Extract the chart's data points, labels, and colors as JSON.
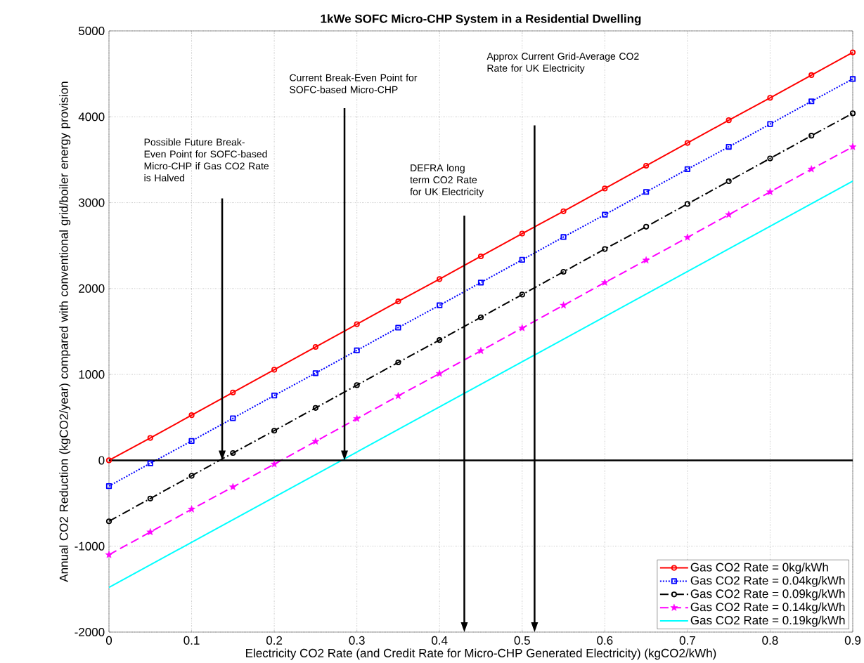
{
  "chart_data": {
    "type": "line",
    "title": "1kWe SOFC Micro-CHP System in a Residential Dwelling",
    "xlabel": "Electricity CO2 Rate (and Credit Rate for Micro-CHP Generated Electricity) (kgCO2/kWh)",
    "ylabel": "Annual CO2 Reduction (kgCO2/year) compared with conventional grid/boiler energy provision",
    "x": [
      0,
      0.05,
      0.1,
      0.15,
      0.2,
      0.25,
      0.3,
      0.35,
      0.4,
      0.45,
      0.5,
      0.55,
      0.6,
      0.65,
      0.7,
      0.75,
      0.8,
      0.85,
      0.9
    ],
    "series": [
      {
        "name": "Gas CO2 Rate = 0kg/kWh",
        "color": "#ff0000",
        "marker": "circle",
        "line_style": "solid",
        "values": [
          0,
          260,
          525,
          790,
          1055,
          1320,
          1585,
          1850,
          2110,
          2375,
          2640,
          2900,
          3165,
          3430,
          3695,
          3960,
          4220,
          4485,
          4750
        ]
      },
      {
        "name": "Gas CO2 Rate = 0.04kg/kWh",
        "color": "#0000ff",
        "marker": "square",
        "line_style": "dotted",
        "values": [
          -300,
          -35,
          225,
          490,
          755,
          1015,
          1280,
          1545,
          1805,
          2070,
          2335,
          2600,
          2860,
          3125,
          3390,
          3650,
          3915,
          4180,
          4440
        ]
      },
      {
        "name": "Gas CO2 Rate = 0.09kg/kWh",
        "color": "#000000",
        "marker": "circle",
        "line_style": "dashdot",
        "values": [
          -710,
          -445,
          -180,
          85,
          345,
          610,
          875,
          1140,
          1400,
          1665,
          1930,
          2195,
          2460,
          2720,
          2985,
          3250,
          3515,
          3780,
          4040
        ]
      },
      {
        "name": "Gas CO2 Rate = 0.14kg/kWh",
        "color": "#ff00ff",
        "marker": "star",
        "line_style": "dashed",
        "values": [
          -1100,
          -835,
          -570,
          -310,
          -45,
          220,
          485,
          750,
          1010,
          1275,
          1540,
          1805,
          2070,
          2330,
          2595,
          2860,
          3125,
          3390,
          3650
        ]
      },
      {
        "name": "Gas CO2 Rate = 0.19kg/kWh",
        "color": "#00ffff",
        "marker": "none",
        "line_style": "solid",
        "x": [
          0,
          0.9
        ],
        "values": [
          -1480,
          3250
        ]
      }
    ],
    "xlim": [
      0,
      0.9
    ],
    "ylim": [
      -2000,
      5000
    ],
    "xticks": [
      0,
      0.1,
      0.2,
      0.3,
      0.4,
      0.5,
      0.6,
      0.7,
      0.8,
      0.9
    ],
    "yticks": [
      -2000,
      -1000,
      0,
      1000,
      2000,
      3000,
      4000,
      5000
    ],
    "grid": true,
    "legend": "bottom right",
    "ref_lines": [
      {
        "axis": "y",
        "value": 0,
        "color": "#000000"
      }
    ],
    "annotations": [
      "Possible Future Break-Even Point for SOFC-based Micro-CHP if Gas CO2 Rate is Halved",
      "Current Break-Even Point for SOFC-based Micro-CHP",
      "DEFRA long term CO2 Rate for UK Electricity",
      "Approx Current Grid-Average CO2 Rate for UK Electricity"
    ]
  }
}
